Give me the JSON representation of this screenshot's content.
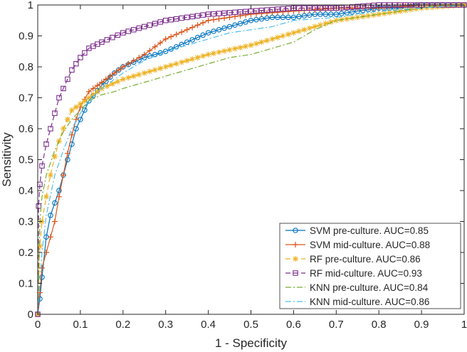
{
  "chart_data": {
    "type": "line",
    "title": "",
    "xlabel": "1 - Specificity",
    "ylabel": "Sensitivity",
    "xlim": [
      0,
      1
    ],
    "ylim": [
      0,
      1
    ],
    "xticks": [
      "0",
      "0.1",
      "0.2",
      "0.3",
      "0.4",
      "0.5",
      "0.6",
      "0.7",
      "0.8",
      "0.9",
      "1"
    ],
    "yticks": [
      "0",
      "0.1",
      "0.2",
      "0.3",
      "0.4",
      "0.5",
      "0.6",
      "0.7",
      "0.8",
      "0.9",
      "1"
    ],
    "grid": false,
    "legend_position": "bottom-right",
    "series": [
      {
        "name": "SVM pre-culture. AUC=0.85",
        "color": "#0072BD",
        "line_style": "solid",
        "marker": "circle",
        "x": [
          0,
          0.005,
          0.01,
          0.02,
          0.03,
          0.04,
          0.05,
          0.06,
          0.07,
          0.08,
          0.09,
          0.1,
          0.12,
          0.15,
          0.18,
          0.2,
          0.25,
          0.3,
          0.35,
          0.4,
          0.45,
          0.5,
          0.55,
          0.6,
          0.65,
          0.7,
          0.75,
          0.8,
          0.85,
          0.9,
          0.95,
          1
        ],
        "y": [
          0,
          0.05,
          0.12,
          0.25,
          0.32,
          0.36,
          0.4,
          0.45,
          0.5,
          0.55,
          0.6,
          0.63,
          0.69,
          0.74,
          0.78,
          0.8,
          0.83,
          0.85,
          0.88,
          0.91,
          0.93,
          0.95,
          0.96,
          0.96,
          0.97,
          0.97,
          0.98,
          0.99,
          0.99,
          1,
          1,
          1
        ]
      },
      {
        "name": "SVM mid-culture. AUC=0.88",
        "color": "#D95319",
        "line_style": "solid",
        "marker": "plus",
        "x": [
          0,
          0.005,
          0.01,
          0.02,
          0.03,
          0.04,
          0.05,
          0.06,
          0.07,
          0.08,
          0.09,
          0.1,
          0.12,
          0.14,
          0.16,
          0.18,
          0.2,
          0.25,
          0.3,
          0.35,
          0.4,
          0.45,
          0.5,
          0.6,
          0.7,
          0.8,
          0.9,
          1
        ],
        "y": [
          0,
          0.07,
          0.15,
          0.2,
          0.25,
          0.3,
          0.38,
          0.45,
          0.52,
          0.58,
          0.63,
          0.67,
          0.72,
          0.74,
          0.76,
          0.78,
          0.8,
          0.84,
          0.89,
          0.92,
          0.95,
          0.96,
          0.97,
          0.98,
          0.99,
          0.99,
          1,
          1
        ]
      },
      {
        "name": "RF pre-culture. AUC=0.86",
        "color": "#EDB120",
        "line_style": "dashed",
        "marker": "asterisk",
        "x": [
          0,
          0.005,
          0.01,
          0.02,
          0.03,
          0.04,
          0.05,
          0.06,
          0.07,
          0.08,
          0.1,
          0.12,
          0.15,
          0.2,
          0.25,
          0.3,
          0.35,
          0.4,
          0.5,
          0.6,
          0.7,
          0.8,
          0.9,
          1
        ],
        "y": [
          0,
          0.22,
          0.3,
          0.38,
          0.45,
          0.51,
          0.56,
          0.6,
          0.63,
          0.66,
          0.68,
          0.7,
          0.73,
          0.76,
          0.78,
          0.8,
          0.82,
          0.84,
          0.87,
          0.91,
          0.95,
          0.97,
          0.99,
          1
        ]
      },
      {
        "name": "RF mid-culture. AUC=0.93",
        "color": "#7E2F8E",
        "line_style": "dashed",
        "marker": "square",
        "x": [
          0,
          0.002,
          0.005,
          0.01,
          0.02,
          0.03,
          0.04,
          0.05,
          0.06,
          0.07,
          0.08,
          0.09,
          0.1,
          0.12,
          0.15,
          0.2,
          0.25,
          0.3,
          0.35,
          0.4,
          0.5,
          0.6,
          0.7,
          0.8,
          0.9,
          1
        ],
        "y": [
          0,
          0.35,
          0.42,
          0.48,
          0.55,
          0.6,
          0.65,
          0.7,
          0.73,
          0.76,
          0.79,
          0.81,
          0.83,
          0.86,
          0.88,
          0.91,
          0.93,
          0.95,
          0.96,
          0.97,
          0.98,
          0.99,
          0.99,
          1,
          1,
          1
        ]
      },
      {
        "name": "KNN pre-culture. AUC=0.84",
        "color": "#77AC30",
        "line_style": "dashdot",
        "marker": "none",
        "x": [
          0,
          0.005,
          0.01,
          0.02,
          0.04,
          0.06,
          0.08,
          0.1,
          0.12,
          0.15,
          0.18,
          0.2,
          0.25,
          0.3,
          0.35,
          0.4,
          0.45,
          0.5,
          0.55,
          0.6,
          0.65,
          0.7,
          0.75,
          0.8,
          0.85,
          0.9,
          0.95,
          1
        ],
        "y": [
          0,
          0.3,
          0.38,
          0.45,
          0.53,
          0.59,
          0.63,
          0.66,
          0.69,
          0.71,
          0.72,
          0.73,
          0.75,
          0.77,
          0.79,
          0.81,
          0.83,
          0.84,
          0.86,
          0.88,
          0.92,
          0.95,
          0.96,
          0.97,
          0.98,
          0.99,
          1,
          1
        ]
      },
      {
        "name": "KNN mid-culture. AUC=0.86",
        "color": "#4DBEEE",
        "line_style": "dashdot",
        "marker": "none",
        "x": [
          0,
          0.005,
          0.01,
          0.02,
          0.04,
          0.06,
          0.08,
          0.1,
          0.12,
          0.15,
          0.2,
          0.25,
          0.3,
          0.35,
          0.4,
          0.45,
          0.5,
          0.55,
          0.6,
          0.7,
          0.8,
          0.9,
          1
        ],
        "y": [
          0,
          0.1,
          0.2,
          0.32,
          0.45,
          0.53,
          0.6,
          0.65,
          0.69,
          0.73,
          0.78,
          0.82,
          0.85,
          0.87,
          0.89,
          0.91,
          0.92,
          0.93,
          0.95,
          0.96,
          0.98,
          0.99,
          1
        ]
      }
    ]
  }
}
